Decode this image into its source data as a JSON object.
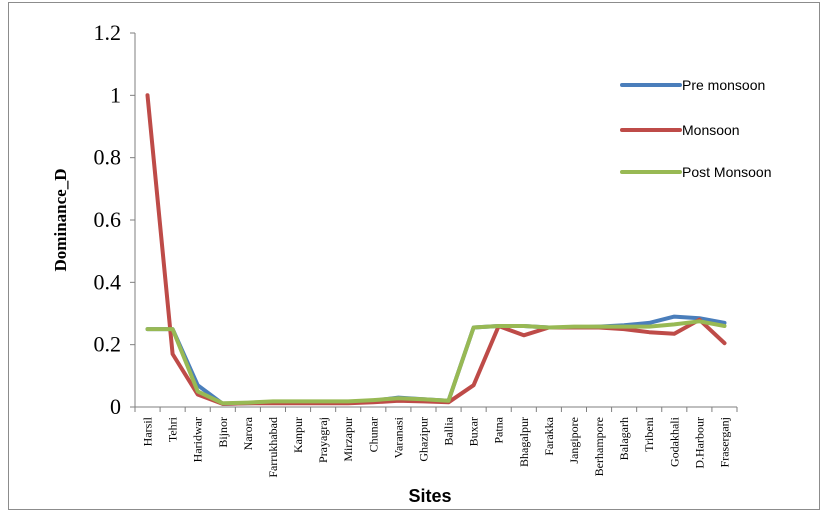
{
  "chart_data": {
    "type": "line",
    "title": "",
    "xlabel": "Sites",
    "ylabel": "Dominance_D",
    "ylim": [
      0,
      1.2
    ],
    "yticks": [
      "0",
      "0.2",
      "0.4",
      "0.6",
      "0.8",
      "1",
      "1.2"
    ],
    "ytick_values": [
      0,
      0.2,
      0.4,
      0.6,
      0.8,
      1.0,
      1.2
    ],
    "grid": false,
    "legend_position": "right",
    "categories": [
      "Harsil",
      "Tehri",
      "Haridwar",
      "Bijnor",
      "Narora",
      "Farrukhabad",
      "Kanpur",
      "Prayagraj",
      "Mirzapur",
      "Chunar",
      "Varanasi",
      "Ghazipur",
      "Ballia",
      "Buxar",
      "Patna",
      "Bhagalpur",
      "Farakka",
      "Jangipore",
      "Berhampore",
      "Balagarh",
      "Tribeni",
      "Godakhali",
      "D.Harbour",
      "Fraserganj"
    ],
    "series": [
      {
        "name": "Pre monsoon",
        "color": "#4a7ebb",
        "values": [
          0.25,
          0.25,
          0.07,
          0.01,
          0.012,
          0.015,
          0.015,
          0.015,
          0.015,
          0.02,
          0.03,
          0.025,
          0.02,
          0.255,
          0.26,
          0.26,
          0.255,
          0.255,
          0.258,
          0.262,
          0.27,
          0.29,
          0.285,
          0.27
        ]
      },
      {
        "name": "Monsoon",
        "color": "#be4b48",
        "values": [
          1.0,
          0.17,
          0.04,
          0.01,
          0.012,
          0.012,
          0.012,
          0.012,
          0.012,
          0.015,
          0.02,
          0.018,
          0.015,
          0.07,
          0.26,
          0.23,
          0.255,
          0.255,
          0.255,
          0.25,
          0.24,
          0.235,
          0.28,
          0.205
        ]
      },
      {
        "name": "Post Monsoon",
        "color": "#98b954",
        "values": [
          0.25,
          0.25,
          0.05,
          0.012,
          0.014,
          0.018,
          0.018,
          0.018,
          0.018,
          0.022,
          0.028,
          0.025,
          0.02,
          0.255,
          0.26,
          0.26,
          0.255,
          0.258,
          0.258,
          0.258,
          0.258,
          0.265,
          0.275,
          0.26
        ]
      }
    ]
  }
}
